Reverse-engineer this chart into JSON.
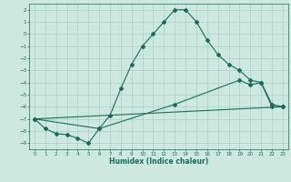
{
  "xlabel": "Humidex (Indice chaleur)",
  "bg_color": "#cce8df",
  "grid_color": "#aacfc5",
  "line_color": "#1a6b5a",
  "xlim": [
    -0.5,
    23.5
  ],
  "ylim": [
    -9.5,
    2.5
  ],
  "xticks": [
    0,
    1,
    2,
    3,
    4,
    5,
    6,
    7,
    8,
    9,
    10,
    11,
    12,
    13,
    14,
    15,
    16,
    17,
    18,
    19,
    20,
    21,
    22,
    23
  ],
  "yticks": [
    2,
    1,
    0,
    -1,
    -2,
    -3,
    -4,
    -5,
    -6,
    -7,
    -8,
    -9
  ],
  "line1_x": [
    0,
    1,
    2,
    3,
    4,
    5,
    6,
    7,
    8,
    9,
    10,
    11,
    12,
    13,
    14,
    15,
    16,
    17,
    18,
    19,
    20,
    21,
    22,
    23
  ],
  "line1_y": [
    -7.0,
    -7.8,
    -8.2,
    -8.3,
    -8.6,
    -9.0,
    -7.8,
    -6.7,
    -4.5,
    -2.5,
    -1.0,
    0.0,
    1.0,
    2.0,
    2.0,
    1.0,
    -0.5,
    -1.7,
    -2.5,
    -3.0,
    -3.8,
    -4.0,
    -6.0,
    -6.0
  ],
  "line2_x": [
    0,
    6,
    13,
    19,
    20,
    21,
    22,
    23
  ],
  "line2_y": [
    -7.0,
    -7.8,
    -5.8,
    -3.8,
    -4.2,
    -4.0,
    -5.8,
    -6.0
  ],
  "line3_x": [
    0,
    23
  ],
  "line3_y": [
    -7.0,
    -6.0
  ]
}
